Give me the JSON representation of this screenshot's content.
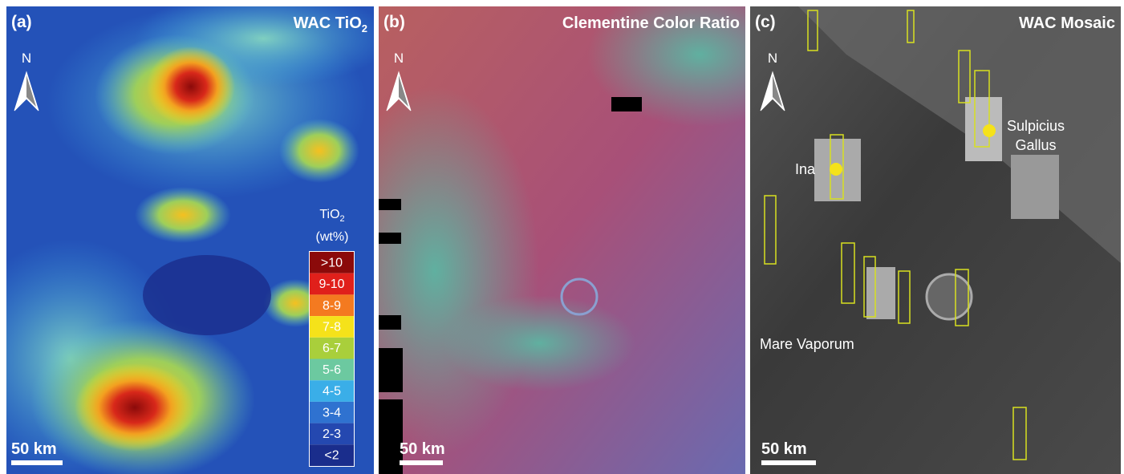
{
  "panels": [
    {
      "label": "(a)",
      "title": {
        "text": "WAC TiO",
        "sub": "2"
      },
      "north": "N",
      "scale": "50 km"
    },
    {
      "label": "(b)",
      "title": {
        "text": "Clementine Color Ratio"
      },
      "north": "N",
      "scale": "50 km"
    },
    {
      "label": "(c)",
      "title": {
        "text": "WAC Mosaic"
      },
      "north": "N",
      "scale": "50 km"
    }
  ],
  "legend": {
    "title": {
      "text": "TiO",
      "sub": "2",
      "unit": "(wt%)"
    },
    "items": [
      {
        "label": ">10",
        "color": "#8b0a0a"
      },
      {
        "label": "9-10",
        "color": "#e0201b"
      },
      {
        "label": "8-9",
        "color": "#f47a20"
      },
      {
        "label": "7-8",
        "color": "#f5e21a"
      },
      {
        "label": "6-7",
        "color": "#a9cf3b"
      },
      {
        "label": "5-6",
        "color": "#6cc9a0"
      },
      {
        "label": "4-5",
        "color": "#3aaee8"
      },
      {
        "label": "3-4",
        "color": "#2f72d0"
      },
      {
        "label": "2-3",
        "color": "#2448b0"
      },
      {
        "label": "<2",
        "color": "#1a2d8c"
      }
    ]
  },
  "annotations": [
    {
      "text": "Ina"
    },
    {
      "lines": [
        "Sulpicius",
        "Gallus"
      ]
    },
    {
      "text": "Mare Vaporum"
    }
  ]
}
